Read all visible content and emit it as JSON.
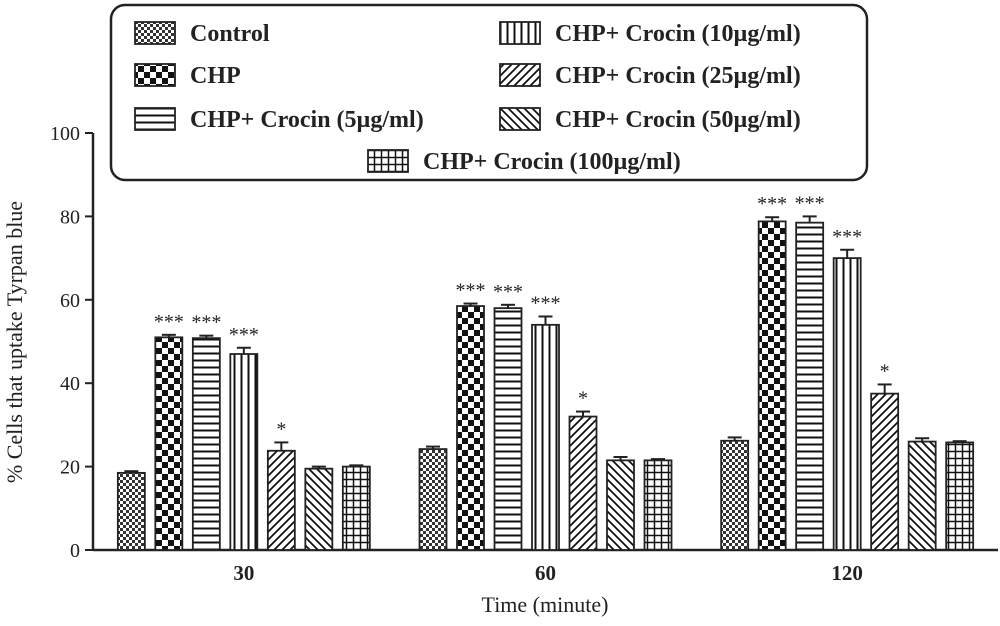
{
  "chart_data": {
    "type": "bar",
    "xlabel": "Time (minute)",
    "ylabel": "% Cells that uptake Tyrpan blue",
    "categories": [
      "30",
      "60",
      "120"
    ],
    "ylim": [
      0,
      100
    ],
    "yticks": [
      0,
      20,
      40,
      60,
      80,
      100
    ],
    "grid": false,
    "legend_position": "top",
    "series": [
      {
        "name": "Control",
        "pattern": "fine-check",
        "values": [
          18.5,
          24.2,
          26.2
        ],
        "errors": [
          0.4,
          0.6,
          0.8
        ],
        "annotations": [
          "",
          "",
          ""
        ]
      },
      {
        "name": "CHP",
        "pattern": "coarse-check",
        "values": [
          51.0,
          58.5,
          78.8
        ],
        "errors": [
          0.6,
          0.6,
          1.0
        ],
        "annotations": [
          "***",
          "***",
          "***"
        ]
      },
      {
        "name": "CHP+ Crocin (5µg/ml)",
        "pattern": "horizontal-lines",
        "values": [
          50.8,
          58.0,
          78.5
        ],
        "errors": [
          0.6,
          0.8,
          1.5
        ],
        "annotations": [
          "***",
          "***",
          "***"
        ]
      },
      {
        "name": "CHP+ Crocin (10µg/ml)",
        "pattern": "vertical-lines",
        "values": [
          47.0,
          54.0,
          70.0
        ],
        "errors": [
          1.5,
          2.0,
          2.0
        ],
        "annotations": [
          "***",
          "***",
          "***"
        ]
      },
      {
        "name": "CHP+ Crocin (25µg/ml)",
        "pattern": "diagonal-right",
        "values": [
          23.8,
          32.0,
          37.5
        ],
        "errors": [
          2.0,
          1.2,
          2.2
        ],
        "annotations": [
          "*",
          "*",
          "*"
        ]
      },
      {
        "name": "CHP+ Crocin (50µg/ml)",
        "pattern": "diagonal-left",
        "values": [
          19.5,
          21.5,
          26.0
        ],
        "errors": [
          0.5,
          0.8,
          0.8
        ],
        "annotations": [
          "",
          "",
          ""
        ]
      },
      {
        "name": "CHP+ Crocin (100µg/ml)",
        "pattern": "grid",
        "values": [
          20.0,
          21.5,
          25.8
        ],
        "errors": [
          0.3,
          0.3,
          0.3
        ],
        "annotations": [
          "",
          "",
          ""
        ]
      }
    ]
  },
  "colors": {
    "ink": "#222222",
    "background": "#ffffff"
  }
}
